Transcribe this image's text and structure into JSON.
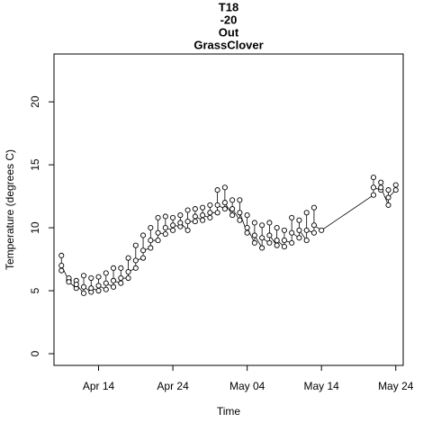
{
  "chart_data": {
    "type": "scatter",
    "title": [
      "T18",
      "-20",
      "Out",
      "GrassClover"
    ],
    "xlabel": "Time",
    "ylabel": "Temperature (degrees C)",
    "xlim": [
      "Apr 08",
      "May 25"
    ],
    "ylim": [
      -0.93,
      23.8
    ],
    "xticks": [
      "Apr 14",
      "Apr 24",
      "May 04",
      "May 14",
      "May 24"
    ],
    "yticks": [
      0,
      5,
      10,
      15,
      20
    ],
    "color": "#000000",
    "x": [
      "Apr 09",
      "Apr 09",
      "Apr 09",
      "Apr 10",
      "Apr 10",
      "Apr 10",
      "Apr 11",
      "Apr 11",
      "Apr 11",
      "Apr 12",
      "Apr 12",
      "Apr 12",
      "Apr 13",
      "Apr 13",
      "Apr 13",
      "Apr 14",
      "Apr 14",
      "Apr 14",
      "Apr 15",
      "Apr 15",
      "Apr 15",
      "Apr 16",
      "Apr 16",
      "Apr 16",
      "Apr 17",
      "Apr 17",
      "Apr 17",
      "Apr 18",
      "Apr 18",
      "Apr 18",
      "Apr 19",
      "Apr 19",
      "Apr 19",
      "Apr 20",
      "Apr 20",
      "Apr 20",
      "Apr 21",
      "Apr 21",
      "Apr 21",
      "Apr 22",
      "Apr 22",
      "Apr 22",
      "Apr 23",
      "Apr 23",
      "Apr 23",
      "Apr 24",
      "Apr 24",
      "Apr 24",
      "Apr 25",
      "Apr 25",
      "Apr 25",
      "Apr 26",
      "Apr 26",
      "Apr 26",
      "Apr 27",
      "Apr 27",
      "Apr 27",
      "Apr 28",
      "Apr 28",
      "Apr 28",
      "Apr 29",
      "Apr 29",
      "Apr 29",
      "Apr 30",
      "Apr 30",
      "Apr 30",
      "May 01",
      "May 01",
      "May 01",
      "May 02",
      "May 02",
      "May 02",
      "May 03",
      "May 03",
      "May 03",
      "May 04",
      "May 04",
      "May 04",
      "May 05",
      "May 05",
      "May 05",
      "May 06",
      "May 06",
      "May 06",
      "May 07",
      "May 07",
      "May 07",
      "May 08",
      "May 08",
      "May 08",
      "May 09",
      "May 09",
      "May 09",
      "May 10",
      "May 10",
      "May 10",
      "May 11",
      "May 11",
      "May 11",
      "May 12",
      "May 12",
      "May 12",
      "May 13",
      "May 13",
      "May 13",
      "May 14",
      "May 21",
      "May 21",
      "May 21",
      "May 22",
      "May 22",
      "May 22",
      "May 23",
      "May 23",
      "May 23",
      "May 24",
      "May 24"
    ],
    "values": [
      6.6,
      7.8,
      7.0,
      5.8,
      6.0,
      5.7,
      5.2,
      5.8,
      5.5,
      4.8,
      6.2,
      5.3,
      4.9,
      6.0,
      5.2,
      5.0,
      6.1,
      5.4,
      5.1,
      6.4,
      5.6,
      5.3,
      6.8,
      5.8,
      5.6,
      6.8,
      6.0,
      6.0,
      7.6,
      6.5,
      6.8,
      8.6,
      7.4,
      7.6,
      9.4,
      8.2,
      8.4,
      10.0,
      9.0,
      9.0,
      10.8,
      9.6,
      9.5,
      10.9,
      10.0,
      9.8,
      10.8,
      10.2,
      10.1,
      11.0,
      10.4,
      9.8,
      11.4,
      10.5,
      10.5,
      11.5,
      10.9,
      10.6,
      11.6,
      11.0,
      10.8,
      11.8,
      11.2,
      11.2,
      13.0,
      11.8,
      11.5,
      13.2,
      12.0,
      11.0,
      12.2,
      11.5,
      10.6,
      12.2,
      11.2,
      9.6,
      11.0,
      10.0,
      8.8,
      10.4,
      9.4,
      8.4,
      10.2,
      9.2,
      8.8,
      10.4,
      9.4,
      8.6,
      10.0,
      9.0,
      8.5,
      9.8,
      9.0,
      8.8,
      10.8,
      9.6,
      9.2,
      10.6,
      9.8,
      9.0,
      11.2,
      9.8,
      9.6,
      11.6,
      10.2,
      9.8,
      12.6,
      14.0,
      13.2,
      13.0,
      13.6,
      13.2,
      11.8,
      13.0,
      12.4,
      13.0,
      13.4
    ]
  }
}
